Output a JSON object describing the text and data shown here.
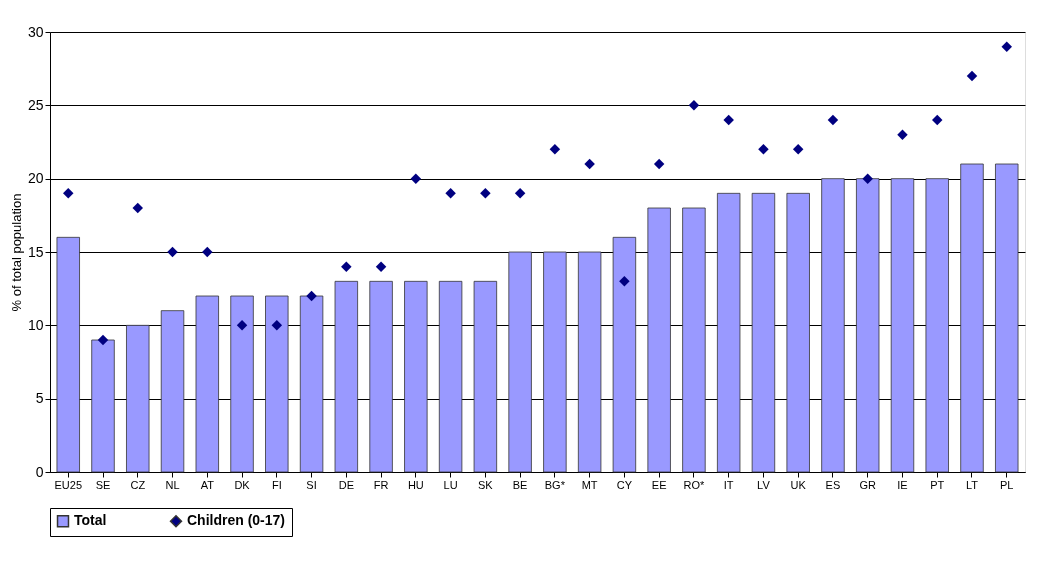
{
  "chart_data": {
    "type": "bar",
    "ylabel": "% of total population",
    "categories": [
      "EU25",
      "SE",
      "CZ",
      "NL",
      "AT",
      "DK",
      "FI",
      "SI",
      "DE",
      "FR",
      "HU",
      "LU",
      "SK",
      "BE",
      "BG*",
      "MT",
      "CY",
      "EE",
      "RO*",
      "IT",
      "LV",
      "UK",
      "ES",
      "GR",
      "IE",
      "PT",
      "LT",
      "PL"
    ],
    "series": [
      {
        "name": "Total",
        "color": "#9999ff",
        "values": [
          16,
          9,
          10,
          11,
          12,
          12,
          12,
          12,
          13,
          13,
          13,
          13,
          13,
          15,
          15,
          15,
          16,
          18,
          18,
          19,
          19,
          19,
          20,
          20,
          20,
          20,
          21,
          21
        ]
      },
      {
        "name": "Children (0-17)",
        "type": "scatter",
        "marker": "diamond",
        "color": "#000080",
        "values": [
          19,
          9,
          18,
          15,
          15,
          10,
          10,
          12,
          14,
          14,
          20,
          19,
          19,
          19,
          22,
          21,
          13,
          21,
          25,
          24,
          22,
          22,
          24,
          20,
          23,
          24,
          27,
          29
        ]
      }
    ],
    "ylim": [
      0,
      30
    ],
    "yticks": [
      0,
      5,
      10,
      15,
      20,
      25,
      30
    ],
    "grid": "y",
    "legend": "bottom"
  }
}
